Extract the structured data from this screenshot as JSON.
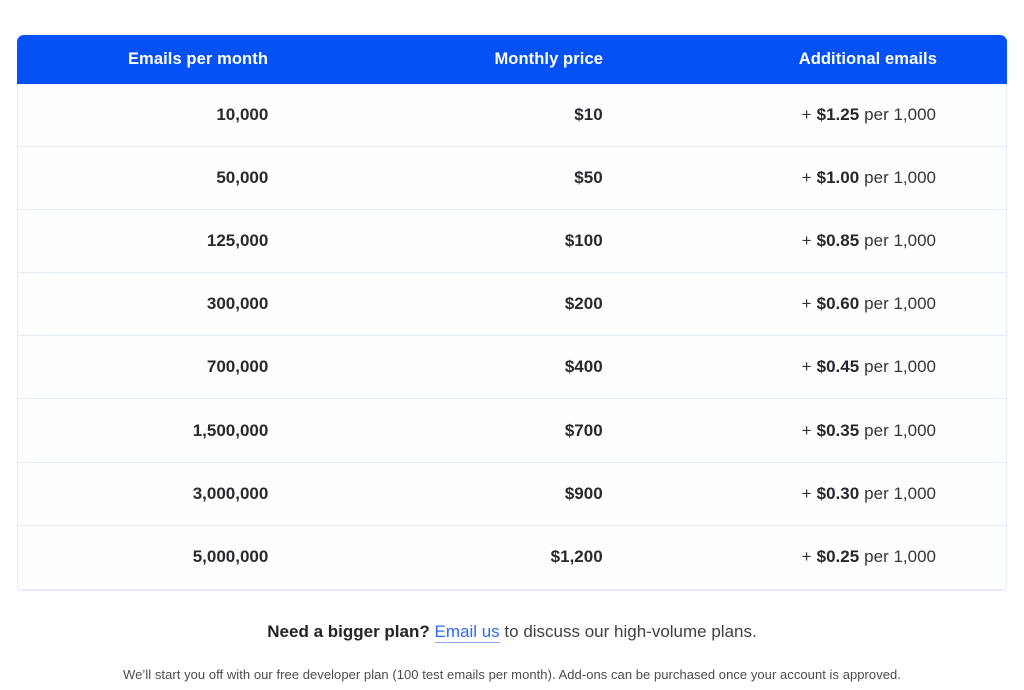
{
  "colors": {
    "header_bg": "#0551f5",
    "header_text": "#ffffff",
    "row_divider": "#e3eafb",
    "link_blue": "#2e6bf0",
    "body_text": "#282a2f"
  },
  "table": {
    "headers": [
      "Emails per month",
      "Monthly price",
      "Additional emails"
    ],
    "rows": [
      {
        "emails": "10,000",
        "price": "$10",
        "add_prefix": "+",
        "add_rate": "$1.25",
        "add_suffix": "per 1,000"
      },
      {
        "emails": "50,000",
        "price": "$50",
        "add_prefix": "+",
        "add_rate": "$1.00",
        "add_suffix": "per 1,000"
      },
      {
        "emails": "125,000",
        "price": "$100",
        "add_prefix": "+",
        "add_rate": "$0.85",
        "add_suffix": "per 1,000"
      },
      {
        "emails": "300,000",
        "price": "$200",
        "add_prefix": "+",
        "add_rate": "$0.60",
        "add_suffix": "per 1,000"
      },
      {
        "emails": "700,000",
        "price": "$400",
        "add_prefix": "+",
        "add_rate": "$0.45",
        "add_suffix": "per 1,000"
      },
      {
        "emails": "1,500,000",
        "price": "$700",
        "add_prefix": "+",
        "add_rate": "$0.35",
        "add_suffix": "per 1,000"
      },
      {
        "emails": "3,000,000",
        "price": "$900",
        "add_prefix": "+",
        "add_rate": "$0.30",
        "add_suffix": "per 1,000"
      },
      {
        "emails": "5,000,000",
        "price": "$1,200",
        "add_prefix": "+",
        "add_rate": "$0.25",
        "add_suffix": "per 1,000"
      }
    ]
  },
  "footer": {
    "lead": "Need a bigger plan?",
    "link_label": "Email us",
    "rest": "to discuss our high-volume plans."
  },
  "footnote": "We’ll start you off with our free developer plan (100 test emails per month). Add-ons can be purchased once your account is approved."
}
